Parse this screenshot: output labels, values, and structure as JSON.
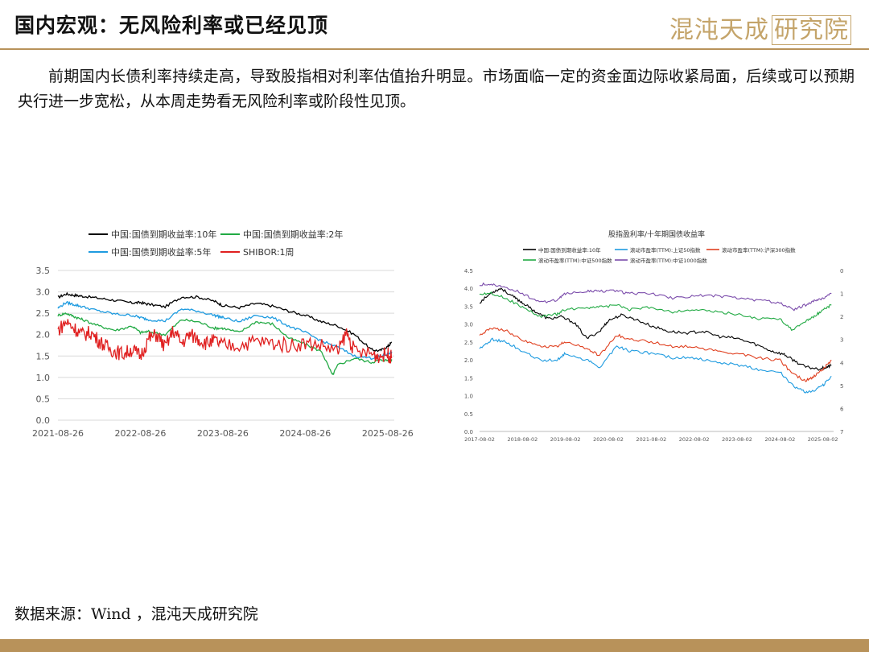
{
  "header": {
    "title": "国内宏观：无风险利率或已经见顶",
    "logo_text": "混沌天成",
    "logo_boxed": "研究院"
  },
  "paragraph": "前期国内长债利率持续走高，导致股指相对利率估值抬升明显。市场面临一定的资金面边际收紧局面，后续或可以预期央行进一步宽松，从本周走势看无风险利率或阶段性见顶。",
  "source": "数据来源：Wind ，混沌天成研究院",
  "colors": {
    "accent": "#b8925a",
    "logo": "#c4a46a"
  },
  "chart_data": [
    {
      "type": "line",
      "title": "",
      "ylim": [
        0,
        3.5
      ],
      "yticks": [
        "0.0",
        "0.5",
        "1.0",
        "1.5",
        "2.0",
        "2.5",
        "3.0",
        "3.5"
      ],
      "xticks": [
        "2021-08-26",
        "2022-08-26",
        "2023-08-26",
        "2024-08-26",
        "2025-08-26"
      ],
      "xrange": [
        0,
        4.08
      ],
      "legend_position": "top",
      "series": [
        {
          "name": "中国:国债到期收益率:10年",
          "color": "#000000",
          "x": [
            0,
            0.1,
            0.2,
            0.3,
            0.5,
            0.7,
            0.9,
            1.0,
            1.1,
            1.3,
            1.5,
            1.7,
            1.9,
            2.0,
            2.2,
            2.4,
            2.6,
            2.8,
            3.0,
            3.2,
            3.4,
            3.6,
            3.8,
            3.9,
            4.0,
            4.05
          ],
          "values": [
            2.87,
            2.95,
            2.92,
            2.9,
            2.85,
            2.8,
            2.74,
            2.75,
            2.71,
            2.65,
            2.88,
            2.88,
            2.78,
            2.68,
            2.63,
            2.73,
            2.67,
            2.55,
            2.45,
            2.3,
            2.2,
            2.0,
            1.65,
            1.62,
            1.72,
            1.82
          ]
        },
        {
          "name": "中国:国债到期收益率:2年",
          "color": "#22aa44",
          "x": [
            0,
            0.1,
            0.2,
            0.3,
            0.5,
            0.7,
            0.9,
            1.0,
            1.1,
            1.3,
            1.5,
            1.7,
            1.9,
            2.0,
            2.2,
            2.4,
            2.6,
            2.8,
            3.0,
            3.2,
            3.33,
            3.4,
            3.6,
            3.8,
            3.9,
            4.0,
            4.05
          ],
          "values": [
            2.45,
            2.5,
            2.42,
            2.35,
            2.2,
            2.1,
            2.2,
            2.05,
            2.07,
            2.0,
            2.35,
            2.3,
            2.15,
            2.15,
            2.05,
            2.3,
            2.25,
            1.92,
            1.78,
            1.6,
            1.05,
            1.3,
            1.45,
            1.35,
            1.4,
            1.4,
            1.42
          ]
        },
        {
          "name": "中国:国债到期收益率:5年",
          "color": "#1e9be0",
          "x": [
            0,
            0.1,
            0.2,
            0.3,
            0.5,
            0.7,
            0.9,
            1.0,
            1.1,
            1.3,
            1.5,
            1.7,
            1.9,
            2.0,
            2.2,
            2.4,
            2.6,
            2.8,
            3.0,
            3.2,
            3.4,
            3.6,
            3.8,
            3.9,
            4.0,
            4.05
          ],
          "values": [
            2.62,
            2.75,
            2.7,
            2.65,
            2.55,
            2.48,
            2.45,
            2.4,
            2.35,
            2.32,
            2.6,
            2.55,
            2.45,
            2.4,
            2.3,
            2.45,
            2.4,
            2.2,
            2.05,
            1.85,
            1.7,
            1.5,
            1.45,
            1.48,
            1.55,
            1.6
          ]
        },
        {
          "name": "SHIBOR:1周",
          "color": "#e02020",
          "x": [
            0,
            0.1,
            0.2,
            0.3,
            0.4,
            0.5,
            0.6,
            0.7,
            0.8,
            0.9,
            1.0,
            1.1,
            1.2,
            1.3,
            1.4,
            1.5,
            1.6,
            1.7,
            1.8,
            1.9,
            2.0,
            2.2,
            2.4,
            2.6,
            2.8,
            3.0,
            3.2,
            3.4,
            3.5,
            3.6,
            3.8,
            3.9,
            4.0,
            4.05
          ],
          "values": [
            2.1,
            2.3,
            2.15,
            2.0,
            2.05,
            1.85,
            1.7,
            1.6,
            1.55,
            1.65,
            1.5,
            1.9,
            2.0,
            1.7,
            2.1,
            1.8,
            2.0,
            1.9,
            1.8,
            1.85,
            1.75,
            1.75,
            1.85,
            1.8,
            1.75,
            1.8,
            1.75,
            1.6,
            2.05,
            1.6,
            1.55,
            1.5,
            1.55,
            1.45
          ]
        }
      ]
    },
    {
      "type": "line",
      "title": "股指盈利率/十年期国债收益率",
      "ylim": [
        0,
        4.5
      ],
      "yticks": [
        "0.0",
        "0.5",
        "1.0",
        "1.5",
        "2.0",
        "2.5",
        "3.0",
        "3.5",
        "4.0",
        "4.5"
      ],
      "y2lim": [
        0,
        7
      ],
      "y2ticks": [
        "0",
        "1",
        "2",
        "3",
        "4",
        "5",
        "6",
        "7"
      ],
      "y2inverted": true,
      "xticks": [
        "2017-08-02",
        "2018-08-02",
        "2019-08-02",
        "2020-08-02",
        "2021-08-02",
        "2022-08-02",
        "2023-08-02",
        "2024-08-02",
        "2025-08-02"
      ],
      "xrange": [
        0,
        8.25
      ],
      "legend_position": "top",
      "series": [
        {
          "name": "中国:国债到期收益率:10年",
          "color": "#000000",
          "axis": "left",
          "x": [
            0,
            0.3,
            0.5,
            0.8,
            1.0,
            1.3,
            1.6,
            1.9,
            2.2,
            2.5,
            2.8,
            3.0,
            3.3,
            3.6,
            4.0,
            4.4,
            4.8,
            5.2,
            5.6,
            6.0,
            6.4,
            6.8,
            7.1,
            7.3,
            7.6,
            7.9,
            8.1,
            8.2
          ],
          "values": [
            3.6,
            3.9,
            4.0,
            3.75,
            3.6,
            3.35,
            3.15,
            3.2,
            3.05,
            2.6,
            2.8,
            3.1,
            3.25,
            3.15,
            2.95,
            2.8,
            2.75,
            2.8,
            2.65,
            2.6,
            2.45,
            2.25,
            2.15,
            2.0,
            1.8,
            1.75,
            1.8,
            1.85
          ]
        },
        {
          "name": "滚动市盈率(TTM):上证50指数",
          "color": "#1e9be0",
          "axis": "right",
          "x": [
            0,
            0.3,
            0.6,
            1.0,
            1.4,
            1.8,
            2.0,
            2.5,
            2.8,
            3.2,
            3.5,
            4.0,
            4.5,
            5.0,
            5.5,
            6.0,
            6.5,
            7.0,
            7.3,
            7.6,
            7.8,
            8.0,
            8.2
          ],
          "values": [
            3.4,
            3.0,
            3.1,
            3.5,
            3.9,
            3.9,
            3.6,
            3.9,
            4.2,
            3.3,
            3.5,
            3.6,
            3.8,
            3.8,
            4.0,
            4.1,
            4.3,
            4.4,
            5.0,
            5.3,
            5.2,
            5.0,
            4.6
          ]
        },
        {
          "name": "滚动市盈率(TTM):沪深300指数",
          "color": "#e04020",
          "axis": "right",
          "x": [
            0,
            0.3,
            0.6,
            1.0,
            1.4,
            1.8,
            2.0,
            2.5,
            2.8,
            3.2,
            3.5,
            4.0,
            4.5,
            5.0,
            5.5,
            6.0,
            6.5,
            7.0,
            7.3,
            7.6,
            7.8,
            8.0,
            8.2
          ],
          "values": [
            2.8,
            2.5,
            2.6,
            3.0,
            3.3,
            3.3,
            3.1,
            3.4,
            3.7,
            2.8,
            3.0,
            3.1,
            3.3,
            3.3,
            3.5,
            3.6,
            3.8,
            3.9,
            4.5,
            4.8,
            4.6,
            4.3,
            3.9
          ]
        },
        {
          "name": "滚动市盈率(TTM):中证500指数",
          "color": "#22aa44",
          "axis": "right",
          "x": [
            0,
            0.3,
            0.6,
            1.0,
            1.4,
            1.8,
            2.0,
            2.5,
            2.8,
            3.2,
            3.5,
            4.0,
            4.5,
            5.0,
            5.5,
            6.0,
            6.5,
            7.0,
            7.3,
            7.6,
            7.8,
            8.0,
            8.2
          ],
          "values": [
            1.0,
            1.0,
            1.2,
            1.6,
            2.0,
            1.9,
            1.7,
            1.6,
            1.6,
            1.5,
            1.7,
            1.6,
            1.8,
            1.7,
            1.8,
            1.9,
            2.1,
            2.1,
            2.6,
            2.2,
            2.0,
            1.7,
            1.5
          ]
        },
        {
          "name": "滚动市盈率(TTM):中证1000指数",
          "color": "#7b4cab",
          "axis": "right",
          "x": [
            0,
            0.3,
            0.6,
            1.0,
            1.4,
            1.8,
            2.0,
            2.5,
            2.8,
            3.2,
            3.5,
            4.0,
            4.5,
            5.0,
            5.5,
            6.0,
            6.5,
            7.0,
            7.3,
            7.6,
            7.8,
            8.0,
            8.2
          ],
          "values": [
            0.6,
            0.6,
            0.7,
            1.0,
            1.4,
            1.3,
            1.0,
            0.9,
            0.9,
            0.9,
            1.0,
            1.0,
            1.2,
            1.1,
            1.1,
            1.2,
            1.3,
            1.4,
            1.7,
            1.5,
            1.3,
            1.2,
            1.0
          ]
        }
      ]
    }
  ]
}
